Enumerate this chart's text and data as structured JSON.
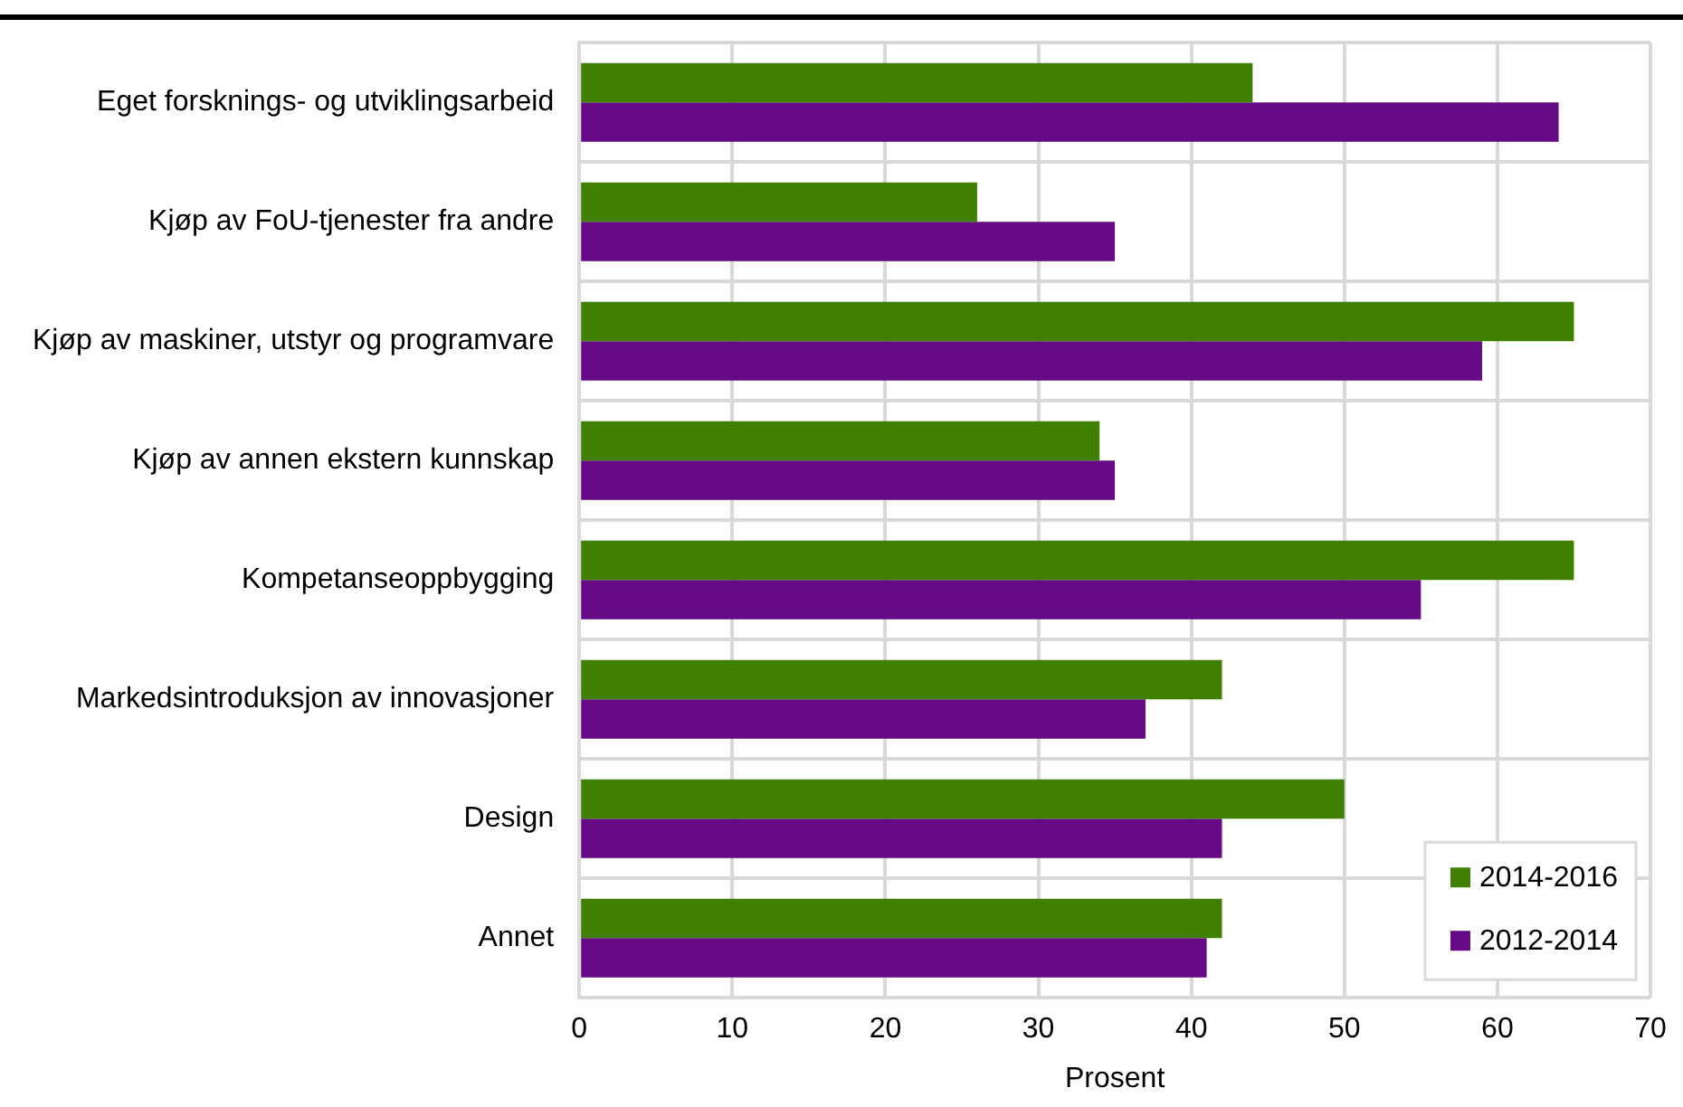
{
  "chart_data": {
    "type": "bar",
    "orientation": "horizontal",
    "xlabel": "Prosent",
    "categories": [
      "Eget forsknings- og utviklingsarbeid",
      "Kjøp av FoU-tjenester fra andre",
      "Kjøp av maskiner, utstyr og programvare",
      "Kjøp av annen ekstern kunnskap",
      "Kompetanseoppbygging",
      "Markedsintroduksjon av innovasjoner",
      "Design",
      "Annet"
    ],
    "series": [
      {
        "name": "2014-2016",
        "color": "#3f8000",
        "values": [
          44,
          26,
          65,
          34,
          65,
          42,
          50,
          42
        ]
      },
      {
        "name": "2012-2014",
        "color": "#660a86",
        "values": [
          64,
          35,
          59,
          35,
          55,
          37,
          42,
          41
        ]
      }
    ],
    "xlim": [
      0,
      70
    ],
    "xticks": [
      0,
      10,
      20,
      30,
      40,
      50,
      60,
      70
    ],
    "grid": true,
    "legend": "bottom right"
  }
}
